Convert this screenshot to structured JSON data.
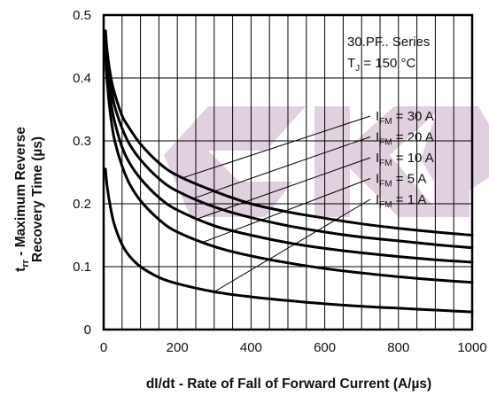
{
  "chart_data": {
    "type": "line",
    "xlabel": "dI/dt - Rate of Fall of Forward Current (A/µs)",
    "ylabel_line1": "t",
    "ylabel_sub": "rr",
    "ylabel_rest": " - Maximum Reverse",
    "ylabel_line2": "Recovery Time (µs)",
    "xlim": [
      0,
      1000
    ],
    "ylim": [
      0,
      0.5
    ],
    "x_ticks": [
      0,
      200,
      400,
      600,
      800,
      1000
    ],
    "y_ticks": [
      0,
      0.1,
      0.2,
      0.3,
      0.4,
      0.5
    ],
    "x_tick_labels": [
      "0",
      "200",
      "400",
      "600",
      "800",
      "1000"
    ],
    "y_tick_labels": [
      "0",
      "0.1",
      "0.2",
      "0.3",
      "0.4",
      "0.5"
    ],
    "grid": true,
    "annotation": {
      "line1": "30.PF.. Series",
      "line2_main": "T",
      "line2_sub": "J",
      "line2_rest": " = 150 °C"
    },
    "series": [
      {
        "name": "I_FM = 30 A",
        "label_main": "I",
        "label_sub": "FM",
        "label_rest": " = 30 A",
        "x": [
          5,
          10,
          20,
          30,
          50,
          70,
          100,
          150,
          200,
          300,
          400,
          500,
          600,
          700,
          800,
          900,
          1000
        ],
        "y": [
          0.475,
          0.44,
          0.4,
          0.375,
          0.34,
          0.32,
          0.295,
          0.265,
          0.245,
          0.22,
          0.2,
          0.187,
          0.177,
          0.168,
          0.161,
          0.155,
          0.15
        ]
      },
      {
        "name": "I_FM = 20 A",
        "label_main": "I",
        "label_sub": "FM",
        "label_rest": " = 20 A",
        "x": [
          5,
          10,
          20,
          30,
          50,
          70,
          100,
          150,
          200,
          300,
          400,
          500,
          600,
          700,
          800,
          900,
          1000
        ],
        "y": [
          0.475,
          0.43,
          0.385,
          0.355,
          0.32,
          0.295,
          0.27,
          0.24,
          0.22,
          0.195,
          0.178,
          0.165,
          0.155,
          0.147,
          0.141,
          0.135,
          0.13
        ]
      },
      {
        "name": "I_FM = 10 A",
        "label_main": "I",
        "label_sub": "FM",
        "label_rest": " = 10 A",
        "x": [
          5,
          10,
          20,
          30,
          50,
          70,
          100,
          150,
          200,
          300,
          400,
          500,
          600,
          700,
          800,
          900,
          1000
        ],
        "y": [
          0.46,
          0.41,
          0.36,
          0.33,
          0.29,
          0.265,
          0.24,
          0.21,
          0.19,
          0.165,
          0.15,
          0.138,
          0.129,
          0.122,
          0.116,
          0.111,
          0.107
        ]
      },
      {
        "name": "I_FM = 5 A",
        "label_main": "I",
        "label_sub": "FM",
        "label_rest": " = 5 A",
        "x": [
          5,
          10,
          20,
          30,
          50,
          70,
          100,
          150,
          200,
          300,
          400,
          500,
          600,
          700,
          800,
          900,
          1000
        ],
        "y": [
          0.44,
          0.39,
          0.335,
          0.3,
          0.26,
          0.232,
          0.205,
          0.175,
          0.155,
          0.132,
          0.117,
          0.106,
          0.097,
          0.09,
          0.084,
          0.079,
          0.075
        ]
      },
      {
        "name": "I_FM = 1 A",
        "label_main": "I",
        "label_sub": "FM",
        "label_rest": " = 1 A",
        "x": [
          5,
          10,
          20,
          30,
          50,
          70,
          100,
          150,
          200,
          300,
          400,
          500,
          600,
          700,
          800,
          900,
          1000
        ],
        "y": [
          0.255,
          0.225,
          0.19,
          0.165,
          0.135,
          0.117,
          0.1,
          0.083,
          0.073,
          0.06,
          0.052,
          0.046,
          0.041,
          0.037,
          0.034,
          0.031,
          0.028
        ]
      }
    ],
    "colors": {
      "line": "#000000",
      "grid": "#000000",
      "watermark": "#c9aac4"
    }
  }
}
